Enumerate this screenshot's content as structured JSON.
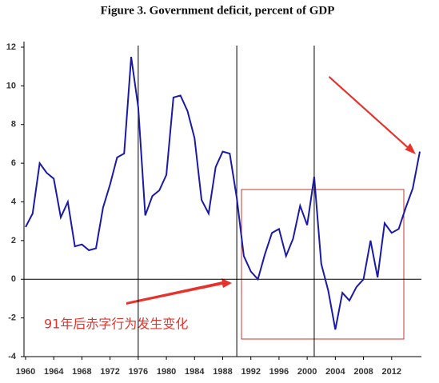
{
  "chart_data": {
    "type": "line",
    "title": "Figure 3. Government deficit, percent of GDP",
    "annotation": "91年后赤字行为发生变化",
    "x": [
      1960,
      1961,
      1962,
      1963,
      1964,
      1965,
      1966,
      1967,
      1968,
      1969,
      1970,
      1971,
      1972,
      1973,
      1974,
      1975,
      1976,
      1977,
      1978,
      1979,
      1980,
      1981,
      1982,
      1983,
      1984,
      1985,
      1986,
      1987,
      1988,
      1989,
      1990,
      1991,
      1992,
      1993,
      1994,
      1995,
      1996,
      1997,
      1998,
      1999,
      2000,
      2001,
      2002,
      2003,
      2004,
      2005,
      2006,
      2007,
      2008,
      2009,
      2010,
      2011,
      2012,
      2013,
      2014,
      2015,
      2016
    ],
    "series": [
      {
        "color": "#1a1aa6",
        "values": [
          2.7,
          3.4,
          6.0,
          5.5,
          5.2,
          3.2,
          4.0,
          1.7,
          1.8,
          1.5,
          1.6,
          3.7,
          4.9,
          6.3,
          6.5,
          11.5,
          8.9,
          3.3,
          4.3,
          4.6,
          5.4,
          9.4,
          9.5,
          8.7,
          7.3,
          4.1,
          3.4,
          5.8,
          6.6,
          6.5,
          4.2,
          1.2,
          0.4,
          0.0,
          1.3,
          2.4,
          2.6,
          1.2,
          2.1,
          3.8,
          2.8,
          5.3,
          0.8,
          -0.6,
          -2.6,
          -0.7,
          -1.1,
          -0.4,
          0.0,
          2.0,
          0.1,
          2.9,
          2.4,
          2.6,
          3.7,
          4.7,
          6.6
        ]
      }
    ],
    "vlines": [
      1976,
      1990,
      2001
    ],
    "xlim": [
      1960,
      2016
    ],
    "xticks": [
      1960,
      1964,
      1968,
      1972,
      1976,
      1980,
      1984,
      1988,
      1992,
      1996,
      2000,
      2004,
      2008,
      2012
    ],
    "ylim": [
      -4,
      12
    ],
    "yticks": [
      -4,
      -2,
      0,
      2,
      4,
      6,
      8,
      10,
      12
    ]
  }
}
